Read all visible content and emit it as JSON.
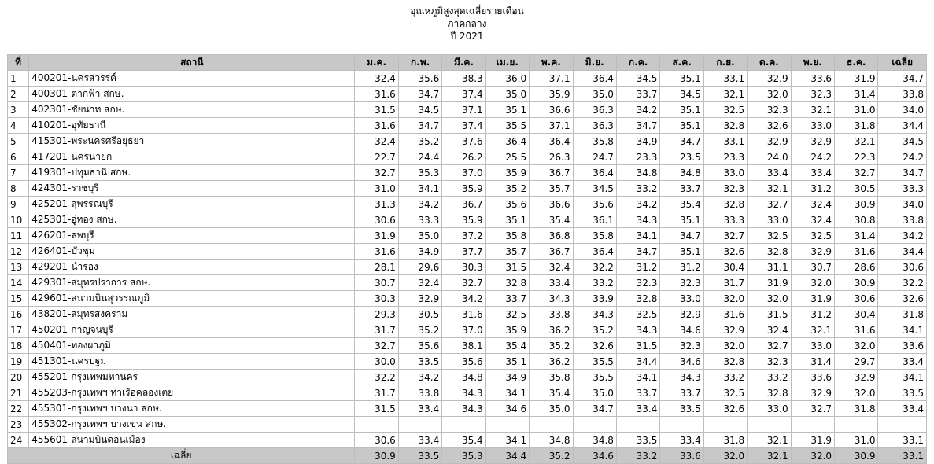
{
  "title": {
    "line1": "อุณหภูมิสูงสุดเฉลี่ยรายเดือน",
    "line2": "ภาคกลาง",
    "line3": "ปี 2021"
  },
  "table": {
    "headers": [
      "ที่",
      "สถานี",
      "ม.ค.",
      "ก.พ.",
      "มี.ค.",
      "เม.ย.",
      "พ.ค.",
      "มิ.ย.",
      "ก.ค.",
      "ส.ค.",
      "ก.ย.",
      "ต.ค.",
      "พ.ย.",
      "ธ.ค.",
      "เฉลี่ย"
    ],
    "rows": [
      {
        "no": "1",
        "station": "400201-นครสวรรค์",
        "vals": [
          "32.4",
          "35.6",
          "38.3",
          "36.0",
          "37.1",
          "36.4",
          "34.5",
          "35.1",
          "33.1",
          "32.9",
          "33.6",
          "31.9",
          "34.7"
        ]
      },
      {
        "no": "2",
        "station": "400301-ตากฟ้า สกษ.",
        "vals": [
          "31.6",
          "34.7",
          "37.4",
          "35.0",
          "35.9",
          "35.0",
          "33.7",
          "34.5",
          "32.1",
          "32.0",
          "32.3",
          "31.4",
          "33.8"
        ]
      },
      {
        "no": "3",
        "station": "402301-ชัยนาท สกษ.",
        "vals": [
          "31.5",
          "34.5",
          "37.1",
          "35.1",
          "36.6",
          "36.3",
          "34.2",
          "35.1",
          "32.5",
          "32.3",
          "32.1",
          "31.0",
          "34.0"
        ]
      },
      {
        "no": "4",
        "station": "410201-อุทัยธานี",
        "vals": [
          "31.6",
          "34.7",
          "37.4",
          "35.5",
          "37.1",
          "36.3",
          "34.7",
          "35.1",
          "32.8",
          "32.6",
          "33.0",
          "31.8",
          "34.4"
        ]
      },
      {
        "no": "5",
        "station": "415301-พระนครศรีอยุธยา",
        "vals": [
          "32.4",
          "35.2",
          "37.6",
          "36.4",
          "36.4",
          "35.8",
          "34.9",
          "34.7",
          "33.1",
          "32.9",
          "32.9",
          "32.1",
          "34.5"
        ]
      },
      {
        "no": "6",
        "station": "417201-นครนายก",
        "vals": [
          "22.7",
          "24.4",
          "26.2",
          "25.5",
          "26.3",
          "24.7",
          "23.3",
          "23.5",
          "23.3",
          "24.0",
          "24.2",
          "22.3",
          "24.2"
        ]
      },
      {
        "no": "7",
        "station": "419301-ปทุมธานี สกษ.",
        "vals": [
          "32.7",
          "35.3",
          "37.0",
          "35.9",
          "36.7",
          "36.4",
          "34.8",
          "34.8",
          "33.0",
          "33.4",
          "33.4",
          "32.7",
          "34.7"
        ]
      },
      {
        "no": "8",
        "station": "424301-ราชบุรี",
        "vals": [
          "31.0",
          "34.1",
          "35.9",
          "35.2",
          "35.7",
          "34.5",
          "33.2",
          "33.7",
          "32.3",
          "32.1",
          "31.2",
          "30.5",
          "33.3"
        ]
      },
      {
        "no": "9",
        "station": "425201-สุพรรณบุรี",
        "vals": [
          "31.3",
          "34.2",
          "36.7",
          "35.6",
          "36.6",
          "35.6",
          "34.2",
          "35.4",
          "32.8",
          "32.7",
          "32.4",
          "30.9",
          "34.0"
        ]
      },
      {
        "no": "10",
        "station": "425301-อู่ทอง สกษ.",
        "vals": [
          "30.6",
          "33.3",
          "35.9",
          "35.1",
          "35.4",
          "36.1",
          "34.3",
          "35.1",
          "33.3",
          "33.0",
          "32.4",
          "30.8",
          "33.8"
        ]
      },
      {
        "no": "11",
        "station": "426201-ลพบุรี",
        "vals": [
          "31.9",
          "35.0",
          "37.2",
          "35.8",
          "36.8",
          "35.8",
          "34.1",
          "34.7",
          "32.7",
          "32.5",
          "32.5",
          "31.4",
          "34.2"
        ]
      },
      {
        "no": "12",
        "station": "426401-บัวชุม",
        "vals": [
          "31.6",
          "34.9",
          "37.7",
          "35.7",
          "36.7",
          "36.4",
          "34.7",
          "35.1",
          "32.6",
          "32.8",
          "32.9",
          "31.6",
          "34.4"
        ]
      },
      {
        "no": "13",
        "station": "429201-นำร่อง",
        "vals": [
          "28.1",
          "29.6",
          "30.3",
          "31.5",
          "32.4",
          "32.2",
          "31.2",
          "31.2",
          "30.4",
          "31.1",
          "30.7",
          "28.6",
          "30.6"
        ]
      },
      {
        "no": "14",
        "station": "429301-สมุทรปราการ สกษ.",
        "vals": [
          "30.7",
          "32.4",
          "32.7",
          "32.8",
          "33.4",
          "33.2",
          "32.3",
          "32.3",
          "31.7",
          "31.9",
          "32.0",
          "30.9",
          "32.2"
        ]
      },
      {
        "no": "15",
        "station": "429601-สนามบินสุวรรณภูมิ",
        "vals": [
          "30.3",
          "32.9",
          "34.2",
          "33.7",
          "34.3",
          "33.9",
          "32.8",
          "33.0",
          "32.0",
          "32.0",
          "31.9",
          "30.6",
          "32.6"
        ]
      },
      {
        "no": "16",
        "station": "438201-สมุทรสงคราม",
        "vals": [
          "29.3",
          "30.5",
          "31.6",
          "32.5",
          "33.8",
          "34.3",
          "32.5",
          "32.9",
          "31.6",
          "31.5",
          "31.2",
          "30.4",
          "31.8"
        ]
      },
      {
        "no": "17",
        "station": "450201-กาญจนบุรี",
        "vals": [
          "31.7",
          "35.2",
          "37.0",
          "35.9",
          "36.2",
          "35.2",
          "34.3",
          "34.6",
          "32.9",
          "32.4",
          "32.1",
          "31.6",
          "34.1"
        ]
      },
      {
        "no": "18",
        "station": "450401-ทองผาภูมิ",
        "vals": [
          "32.7",
          "35.6",
          "38.1",
          "35.4",
          "35.2",
          "32.6",
          "31.5",
          "32.3",
          "32.0",
          "32.7",
          "33.0",
          "32.0",
          "33.6"
        ]
      },
      {
        "no": "19",
        "station": "451301-นครปฐม",
        "vals": [
          "30.0",
          "33.5",
          "35.6",
          "35.1",
          "36.2",
          "35.5",
          "34.4",
          "34.6",
          "32.8",
          "32.3",
          "31.4",
          "29.7",
          "33.4"
        ]
      },
      {
        "no": "20",
        "station": "455201-กรุงเทพมหานคร",
        "vals": [
          "32.2",
          "34.2",
          "34.8",
          "34.9",
          "35.8",
          "35.5",
          "34.1",
          "34.3",
          "33.2",
          "33.2",
          "33.6",
          "32.9",
          "34.1"
        ]
      },
      {
        "no": "21",
        "station": "455203-กรุงเทพฯ ท่าเรือคลองเตย",
        "vals": [
          "31.7",
          "33.8",
          "34.3",
          "34.1",
          "35.4",
          "35.0",
          "33.7",
          "33.7",
          "32.5",
          "32.8",
          "32.9",
          "32.0",
          "33.5"
        ]
      },
      {
        "no": "22",
        "station": "455301-กรุงเทพฯ บางนา สกษ.",
        "vals": [
          "31.5",
          "33.4",
          "34.3",
          "34.6",
          "35.0",
          "34.7",
          "33.4",
          "33.5",
          "32.6",
          "33.0",
          "32.7",
          "31.8",
          "33.4"
        ]
      },
      {
        "no": "23",
        "station": "455302-กรุงเทพฯ บางเขน สกษ.",
        "vals": [
          "-",
          "-",
          "-",
          "-",
          "-",
          "-",
          "-",
          "-",
          "-",
          "-",
          "-",
          "-",
          "-"
        ]
      },
      {
        "no": "24",
        "station": "455601-สนามบินดอนเมือง",
        "vals": [
          "30.6",
          "33.4",
          "35.4",
          "34.1",
          "34.8",
          "34.8",
          "33.5",
          "33.4",
          "31.8",
          "32.1",
          "31.9",
          "31.0",
          "33.1"
        ]
      }
    ],
    "footer": {
      "label": "เฉลี่ย",
      "vals": [
        "30.9",
        "33.5",
        "35.3",
        "34.4",
        "35.2",
        "34.6",
        "33.2",
        "33.6",
        "32.0",
        "32.1",
        "32.0",
        "30.9",
        "33.1"
      ]
    }
  }
}
